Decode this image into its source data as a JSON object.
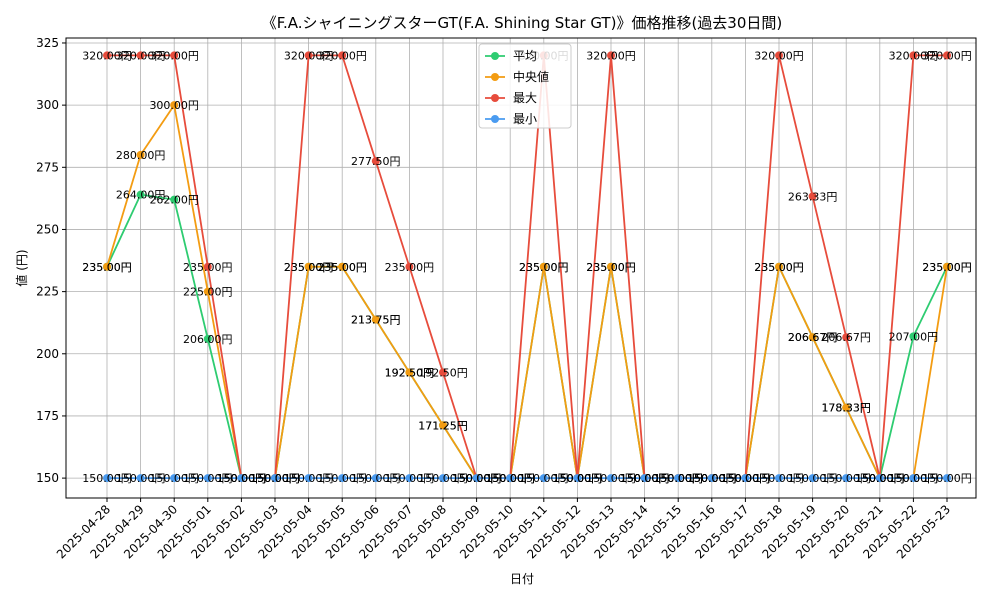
{
  "chart_data": {
    "type": "line",
    "title": "《F.A.シャイニングスターGT(F.A. Shining Star GT)》価格推移(過去30日間)",
    "xlabel": "日付",
    "ylabel": "値 (円)",
    "ylim": [
      142,
      327
    ],
    "yticks": [
      150,
      175,
      200,
      225,
      250,
      275,
      300,
      325
    ],
    "grid": true,
    "legend_position": "top-center",
    "categories": [
      "2025-04-28",
      "2025-04-29",
      "2025-04-30",
      "2025-05-01",
      "2025-05-02",
      "2025-05-03",
      "2025-05-04",
      "2025-05-05",
      "2025-05-06",
      "2025-05-07",
      "2025-05-08",
      "2025-05-09",
      "2025-05-10",
      "2025-05-11",
      "2025-05-12",
      "2025-05-13",
      "2025-05-14",
      "2025-05-15",
      "2025-05-16",
      "2025-05-17",
      "2025-05-18",
      "2025-05-19",
      "2025-05-20",
      "2025-05-21",
      "2025-05-22",
      "2025-05-23"
    ],
    "series": [
      {
        "name": "平均",
        "color": "#2ecc71",
        "values": [
          235,
          264,
          262,
          206,
          150,
          150,
          235,
          235,
          213.75,
          192.5,
          171.25,
          150,
          150,
          235,
          150,
          235,
          150,
          150,
          150,
          150,
          235,
          206.67,
          178.33,
          150,
          207,
          235
        ]
      },
      {
        "name": "中央値",
        "color": "#f39c12",
        "values": [
          235,
          280,
          300,
          225,
          150,
          150,
          235,
          235,
          213.75,
          192.5,
          171.25,
          150,
          150,
          235,
          150,
          235,
          150,
          150,
          150,
          150,
          235,
          206.67,
          178.33,
          150,
          150,
          235
        ]
      },
      {
        "name": "最大",
        "color": "#e74c3c",
        "values": [
          320,
          320,
          320,
          235,
          150,
          150,
          320,
          320,
          277.5,
          235,
          192.5,
          150,
          150,
          320,
          150,
          320,
          150,
          150,
          150,
          150,
          320,
          263.33,
          206.67,
          150,
          320,
          320
        ]
      },
      {
        "name": "最小",
        "color": "#4a9bf0",
        "values": [
          150,
          150,
          150,
          150,
          150,
          150,
          150,
          150,
          150,
          150,
          150,
          150,
          150,
          150,
          150,
          150,
          150,
          150,
          150,
          150,
          150,
          150,
          150,
          150,
          150,
          150
        ]
      }
    ],
    "data_label_suffix": "円"
  }
}
